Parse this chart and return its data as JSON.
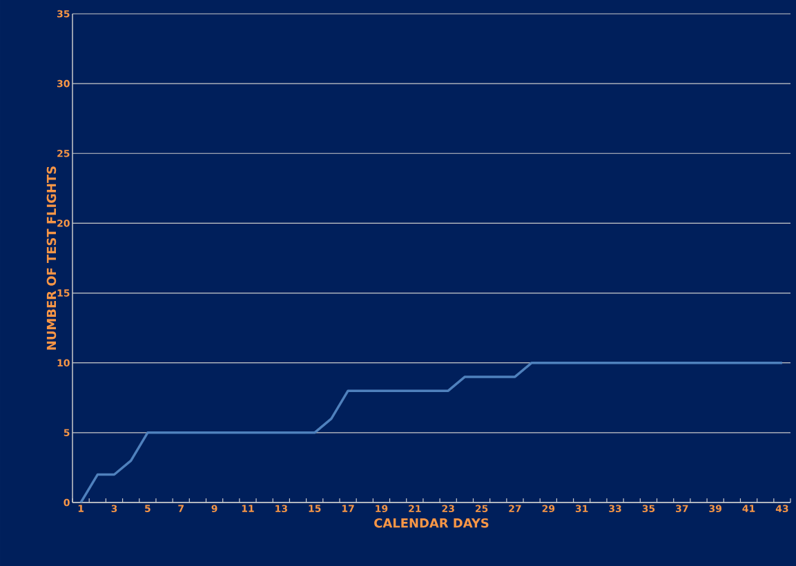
{
  "chart_data": {
    "type": "line",
    "xlabel": "CALENDAR DAYS",
    "ylabel": "NUMBER OF TEST FLIGHTS",
    "categories": [
      "1",
      null,
      "3",
      null,
      "5",
      null,
      "7",
      null,
      "9",
      null,
      "11",
      null,
      "13",
      null,
      "15",
      null,
      "17",
      null,
      "19",
      null,
      "21",
      null,
      "23",
      null,
      "25",
      null,
      "27",
      null,
      "29",
      null,
      "31",
      null,
      "33",
      null,
      "35",
      null,
      "37",
      null,
      "39",
      null,
      "41",
      null,
      "43"
    ],
    "values": [
      0,
      2,
      2,
      3,
      5,
      5,
      5,
      5,
      5,
      5,
      5,
      5,
      5,
      5,
      5,
      6,
      8,
      8,
      8,
      8,
      8,
      8,
      8,
      9,
      9,
      9,
      9,
      10,
      10,
      10,
      10,
      10,
      10,
      10,
      10,
      10,
      10,
      10,
      10,
      10,
      10,
      10,
      10
    ],
    "color": "#4f81bd",
    "ylim": [
      0,
      35
    ],
    "yticks": [
      0,
      5,
      10,
      15,
      20,
      25,
      30,
      35
    ],
    "grid": "y",
    "line_style": "solid",
    "marker": "none"
  }
}
